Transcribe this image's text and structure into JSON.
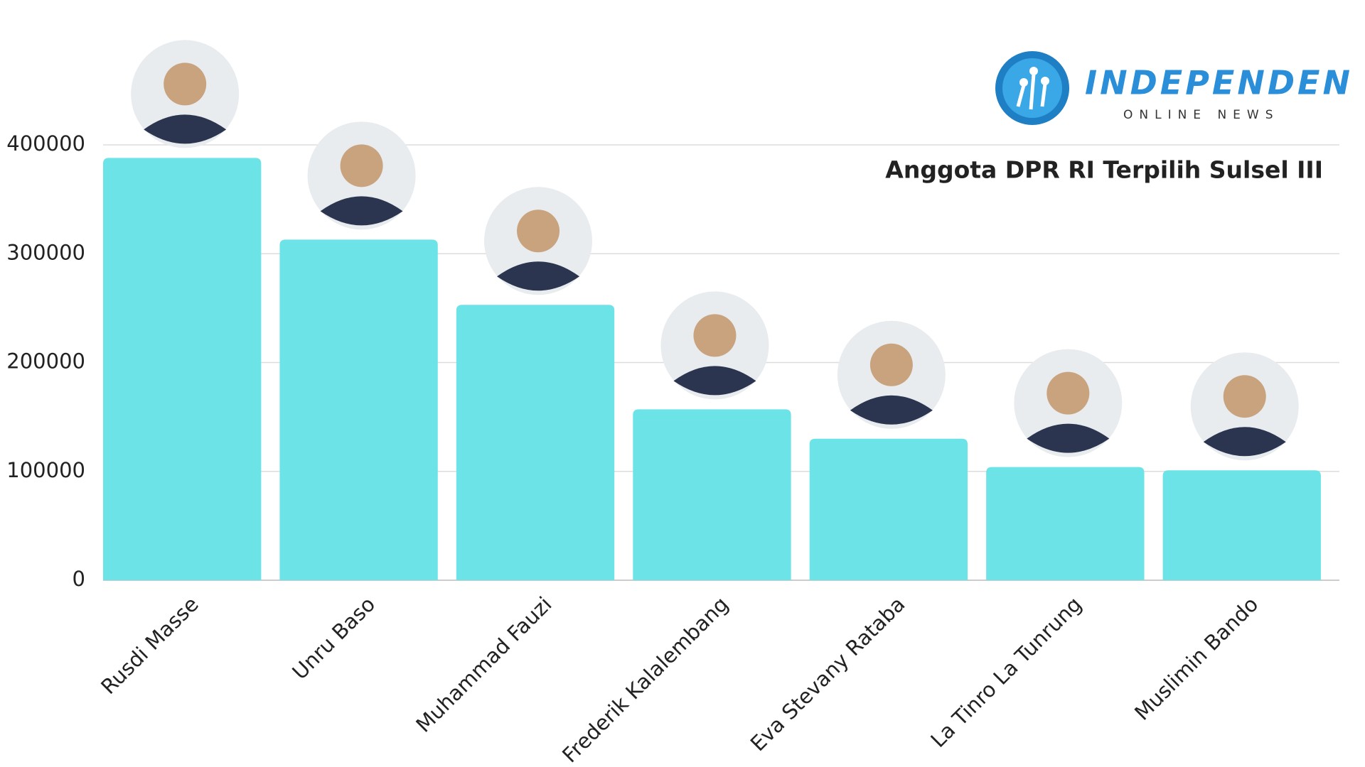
{
  "chart_data": {
    "type": "bar",
    "title": "Anggota DPR RI Terpilih Sulsel III",
    "categories": [
      "Rusdi Masse",
      "Unru Baso",
      "Muhammad Fauzi",
      "Frederik Kalalembang",
      "Eva Stevany Rataba",
      "La Tinro La Tunrung",
      "Muslimin Bando"
    ],
    "values": [
      388000,
      313000,
      253000,
      157000,
      130000,
      104000,
      101000
    ],
    "color": "#6ce3e6",
    "ylim": [
      0,
      400000
    ],
    "yticks": [
      0,
      100000,
      200000,
      300000,
      400000
    ],
    "grid": true
  },
  "logo": {
    "name": "INDEPENDEN",
    "tagline": "ONLINE NEWS"
  }
}
